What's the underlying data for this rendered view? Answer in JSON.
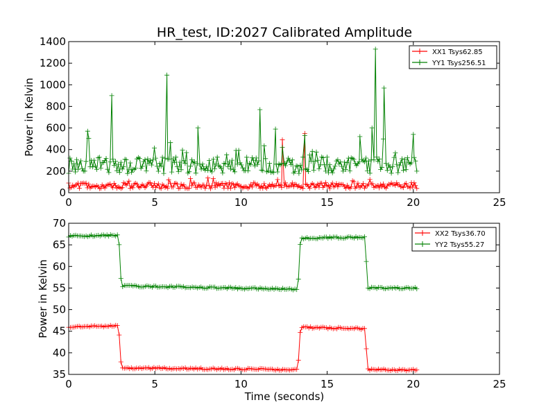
{
  "chart_data": [
    {
      "type": "line",
      "title": "HR_test, ID:2027 Calibrated Amplitude",
      "xlabel": "",
      "ylabel": "Power in Kelvin",
      "xlim": [
        0,
        25
      ],
      "ylim": [
        0,
        1400
      ],
      "xticks": [
        "0",
        "5",
        "10",
        "15",
        "20",
        "25"
      ],
      "yticks": [
        "0",
        "200",
        "400",
        "600",
        "800",
        "1000",
        "1200",
        "1400"
      ],
      "grid": false,
      "legend": "top-right",
      "marker": "+",
      "series": [
        {
          "name": "XX1 Tsys62.85",
          "color": "#ff0000",
          "baseline": 60,
          "noise": 25,
          "x": [
            0,
            2.5,
            5.8,
            8.5,
            10,
            12.4,
            13.7,
            15,
            17.8,
            20.2
          ],
          "y": [
            90,
            60,
            120,
            50,
            60,
            490,
            550,
            60,
            60,
            40
          ]
        },
        {
          "name": "YY1 Tsys256.51",
          "color": "#008000",
          "baseline": 240,
          "noise": 70,
          "x": [
            0,
            1.1,
            2.5,
            5.7,
            7.5,
            11.1,
            12,
            12.4,
            13.7,
            16.9,
            17.6,
            17.8,
            18.3,
            20,
            20.2
          ],
          "y": [
            180,
            570,
            900,
            1090,
            600,
            770,
            590,
            420,
            530,
            520,
            600,
            1330,
            970,
            540,
            200
          ]
        }
      ]
    },
    {
      "type": "line",
      "title": "",
      "xlabel": "Time (seconds)",
      "ylabel": "Power in Kelvin",
      "xlim": [
        0,
        25
      ],
      "ylim": [
        35,
        70
      ],
      "xticks": [
        "0",
        "5",
        "10",
        "15",
        "20",
        "25"
      ],
      "yticks": [
        "35",
        "40",
        "45",
        "50",
        "55",
        "60",
        "65",
        "70"
      ],
      "grid": false,
      "legend": "top-right",
      "marker": "+",
      "series": [
        {
          "name": "XX2 Tsys36.70",
          "color": "#ff0000",
          "noise": 0.2,
          "x": [
            0,
            2.9,
            3.05,
            13.3,
            13.45,
            17.2,
            17.35,
            20.2
          ],
          "y": [
            46,
            46.2,
            36.5,
            36.1,
            45.9,
            45.6,
            36.1,
            36
          ]
        },
        {
          "name": "YY2 Tsys55.27",
          "color": "#008000",
          "noise": 0.2,
          "x": [
            0,
            2.9,
            3.05,
            13.3,
            13.45,
            17.2,
            17.35,
            20.2
          ],
          "y": [
            67,
            67.2,
            55.5,
            54.7,
            66.5,
            66.8,
            55,
            55
          ]
        }
      ]
    }
  ]
}
